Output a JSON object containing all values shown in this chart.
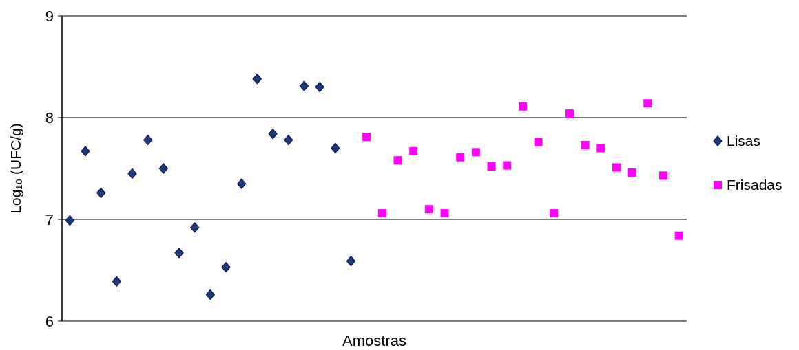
{
  "chart_data": {
    "type": "scatter",
    "xlabel": "Amostras",
    "ylabel": "Log₁₀ (UFC/g)",
    "categories": [
      null,
      null,
      null,
      null,
      null,
      null,
      null,
      null,
      null,
      null,
      null,
      null,
      null,
      null,
      null,
      null,
      null,
      null,
      null,
      null,
      null,
      null,
      null,
      null,
      null,
      null,
      null,
      null,
      null,
      null,
      null,
      null,
      null,
      null,
      null,
      null,
      null,
      null,
      null,
      null
    ],
    "ylim": [
      6,
      9
    ],
    "yticks": [
      6,
      7,
      8,
      9
    ],
    "grid": "y",
    "legend": "right",
    "series": [
      {
        "name": "Lisas",
        "color": "#1f3a6e",
        "marker": "diamond",
        "values": [
          6.99,
          7.67,
          7.26,
          6.39,
          7.45,
          7.78,
          7.5,
          6.67,
          6.92,
          6.26,
          6.53,
          7.35,
          8.38,
          7.84,
          7.78,
          8.31,
          8.3,
          7.7,
          6.59,
          null,
          null,
          null,
          null,
          null,
          null,
          null,
          null,
          null,
          null,
          null,
          null,
          null,
          null,
          null,
          null,
          null,
          null,
          null,
          null,
          null
        ]
      },
      {
        "name": "Frisadas",
        "color": "#ff00ff",
        "marker": "square",
        "values": [
          null,
          null,
          null,
          null,
          null,
          null,
          null,
          null,
          null,
          null,
          null,
          null,
          null,
          null,
          null,
          null,
          null,
          null,
          null,
          7.81,
          7.06,
          7.58,
          7.67,
          7.1,
          7.06,
          7.61,
          7.66,
          7.52,
          7.53,
          8.11,
          7.76,
          7.06,
          8.04,
          7.73,
          7.7,
          7.51,
          7.46,
          8.14,
          7.43,
          6.84
        ]
      }
    ]
  }
}
